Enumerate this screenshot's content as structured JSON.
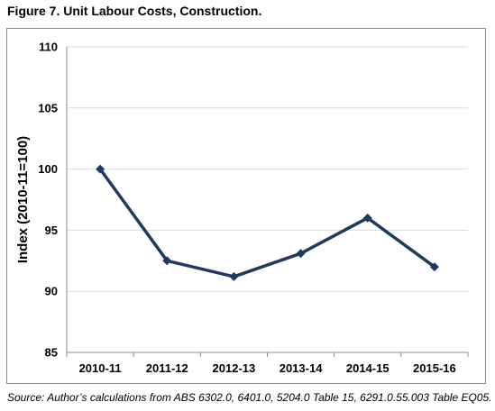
{
  "figure": {
    "title": "Figure 7. Unit Labour Costs, Construction.",
    "source": "Source: Author’s calculations from ABS 6302.0, 6401.0, 5204.0 Table 15, 6291.0.55.003 Table EQ05."
  },
  "chart_data": {
    "type": "line",
    "title": "",
    "xlabel": "",
    "ylabel": "Index (2010-11=100)",
    "categories": [
      "2010-11",
      "2011-12",
      "2012-13",
      "2013-14",
      "2014-15",
      "2015-16"
    ],
    "series": [
      {
        "values": [
          100,
          92.5,
          91.2,
          93.1,
          96,
          92
        ]
      }
    ],
    "ylim": [
      85,
      110
    ],
    "yticks": [
      85,
      90,
      95,
      100,
      105,
      110
    ],
    "grid": "horizontal",
    "legend": "none",
    "colors": {
      "line": "#1f3a5f",
      "grid": "#d9d9d9",
      "axis": "#8c8c8c"
    }
  }
}
